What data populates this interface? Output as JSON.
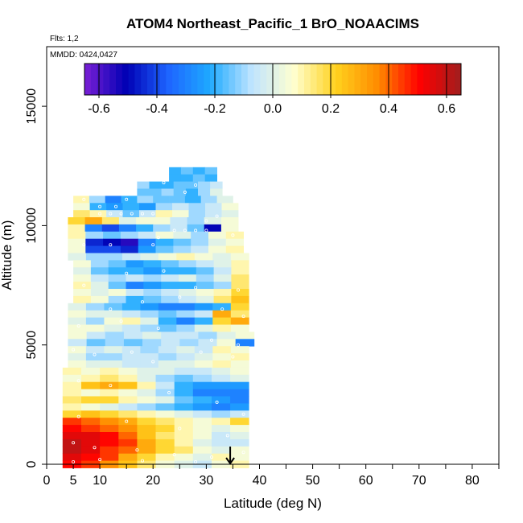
{
  "chart_data": {
    "type": "heatmap",
    "title": "ATOM4 Northeast_Pacific_1 BrO_NOAACIMS",
    "flights_label": "Flts: 1,2",
    "dates_label": "MMDD: 0424,0427",
    "xlabel": "Latitude (deg N)",
    "ylabel": "Altitude (m)",
    "xlim": [
      0,
      85
    ],
    "ylim": [
      0,
      17500
    ],
    "x_ticks": [
      0,
      5,
      10,
      20,
      30,
      40,
      50,
      60,
      70,
      80
    ],
    "y_ticks": [
      0,
      5000,
      10000,
      15000
    ],
    "colorbar": {
      "range": [
        -0.65,
        0.65
      ],
      "ticks": [
        -0.6,
        -0.4,
        -0.2,
        0.0,
        0.2,
        0.4,
        0.6
      ],
      "tick_labels": [
        "-0.6",
        "-0.4",
        "-0.2",
        "0.0",
        "0.2",
        "0.4",
        "0.6"
      ],
      "colors": [
        "#7a1fd6",
        "#0000b4",
        "#1e64ff",
        "#1eaaff",
        "#bfe4ff",
        "#ffffd0",
        "#ffd21e",
        "#ff8c00",
        "#ff0000",
        "#a01e1e"
      ]
    },
    "arrow_latitude": 34.5,
    "rows": [
      {
        "alt": 12300,
        "x0": 23,
        "x1": 32,
        "v": [
          -0.2,
          -0.15,
          -0.2,
          -0.15
        ]
      },
      {
        "alt": 12000,
        "x0": 23,
        "x1": 32,
        "v": [
          -0.2,
          -0.2,
          -0.15,
          -0.2
        ]
      },
      {
        "alt": 11700,
        "x0": 17,
        "x1": 33,
        "v": [
          -0.1,
          -0.2,
          -0.2,
          -0.15,
          -0.15,
          -0.1,
          -0.05
        ]
      },
      {
        "alt": 11400,
        "x0": 17,
        "x1": 33,
        "v": [
          -0.15,
          -0.15,
          -0.1,
          -0.15,
          -0.2,
          -0.1,
          0.0
        ]
      },
      {
        "alt": 11100,
        "x0": 5,
        "x1": 35,
        "v": [
          0.1,
          -0.1,
          -0.3,
          -0.2,
          -0.1,
          -0.15,
          -0.15,
          -0.2,
          -0.1,
          0.0
        ]
      },
      {
        "alt": 10800,
        "x0": 5,
        "x1": 36,
        "v": [
          0.05,
          -0.2,
          -0.25,
          -0.2,
          -0.25,
          -0.1,
          -0.05,
          -0.1,
          -0.05,
          0.05
        ]
      },
      {
        "alt": 10500,
        "x0": 5,
        "x1": 36,
        "v": [
          0.15,
          0.1,
          -0.05,
          -0.15,
          -0.05,
          0.1,
          0.05,
          -0.1,
          -0.05,
          0.0
        ]
      },
      {
        "alt": 10200,
        "x0": 4,
        "x1": 36,
        "v": [
          0.2,
          0.3,
          0.15,
          0.0,
          0.05,
          0.05,
          -0.05,
          -0.1,
          0.0,
          0.05
        ]
      },
      {
        "alt": 9900,
        "x0": 4,
        "x1": 36,
        "v": [
          0.1,
          -0.3,
          -0.4,
          -0.3,
          -0.2,
          -0.1,
          -0.05,
          -0.15,
          -0.5,
          0.05
        ]
      },
      {
        "alt": 9600,
        "x0": 4,
        "x1": 37,
        "v": [
          0.1,
          -0.1,
          -0.15,
          -0.1,
          -0.05,
          0.05,
          0.0,
          -0.1,
          0.05,
          0.1
        ]
      },
      {
        "alt": 9300,
        "x0": 4,
        "x1": 37,
        "v": [
          0.05,
          -0.45,
          -0.5,
          -0.55,
          -0.3,
          -0.2,
          -0.15,
          -0.1,
          0.0,
          0.05
        ]
      },
      {
        "alt": 9000,
        "x0": 4,
        "x1": 37,
        "v": [
          0.05,
          -0.4,
          -0.4,
          -0.45,
          -0.25,
          -0.15,
          -0.1,
          -0.05,
          0.05,
          0.1
        ]
      },
      {
        "alt": 8700,
        "x0": 4,
        "x1": 38,
        "v": [
          0.0,
          -0.1,
          -0.1,
          -0.05,
          0.0,
          0.05,
          0.1,
          0.05,
          0.0,
          0.05
        ]
      },
      {
        "alt": 8400,
        "x0": 5,
        "x1": 38,
        "v": [
          0.05,
          -0.1,
          -0.15,
          -0.25,
          -0.2,
          -0.15,
          -0.1,
          -0.05,
          0.0,
          0.1
        ]
      },
      {
        "alt": 8100,
        "x0": 5,
        "x1": 38,
        "v": [
          0.0,
          -0.15,
          -0.2,
          -0.2,
          -0.25,
          -0.2,
          -0.2,
          -0.15,
          -0.05,
          0.1
        ]
      },
      {
        "alt": 7800,
        "x0": 5,
        "x1": 38,
        "v": [
          0.05,
          -0.05,
          -0.1,
          -0.05,
          -0.1,
          -0.05,
          0.0,
          -0.1,
          0.0,
          0.15
        ]
      },
      {
        "alt": 7500,
        "x0": 5,
        "x1": 38,
        "v": [
          0.1,
          0.0,
          -0.15,
          -0.3,
          -0.25,
          -0.2,
          -0.2,
          -0.15,
          -0.1,
          0.15
        ]
      },
      {
        "alt": 7200,
        "x0": 5,
        "x1": 38,
        "v": [
          0.05,
          0.0,
          0.05,
          -0.05,
          -0.1,
          -0.05,
          0.0,
          0.05,
          0.1,
          0.2
        ]
      },
      {
        "alt": 6900,
        "x0": 5,
        "x1": 38,
        "v": [
          0.1,
          0.05,
          -0.1,
          -0.2,
          -0.15,
          -0.1,
          -0.05,
          0.0,
          0.15,
          0.25
        ]
      },
      {
        "alt": 6600,
        "x0": 4,
        "x1": 38,
        "v": [
          0.0,
          -0.1,
          -0.15,
          -0.2,
          -0.25,
          -0.3,
          -0.3,
          -0.25,
          -0.2,
          0.2
        ]
      },
      {
        "alt": 6300,
        "x0": 4,
        "x1": 38,
        "v": [
          0.05,
          0.0,
          0.0,
          -0.05,
          -0.1,
          -0.15,
          -0.1,
          -0.05,
          0.3,
          0.15
        ]
      },
      {
        "alt": 6000,
        "x0": 4,
        "x1": 38,
        "v": [
          0.0,
          -0.1,
          0.05,
          0.1,
          0.0,
          -0.2,
          -0.3,
          -0.2,
          0.2,
          0.3
        ]
      },
      {
        "alt": 5700,
        "x0": 4,
        "x1": 38,
        "v": [
          0.05,
          0.05,
          0.0,
          -0.05,
          -0.1,
          -0.15,
          -0.1,
          0.0,
          0.1,
          0.05
        ]
      },
      {
        "alt": 5400,
        "x0": 4,
        "x1": 39,
        "v": [
          0.05,
          -0.05,
          -0.1,
          -0.05,
          0.0,
          -0.05,
          -0.05,
          -0.1,
          0.0,
          0.05
        ]
      },
      {
        "alt": 5100,
        "x0": 4,
        "x1": 39,
        "v": [
          -0.05,
          -0.15,
          -0.1,
          -0.15,
          -0.1,
          -0.05,
          -0.1,
          -0.05,
          0.05,
          -0.3
        ]
      },
      {
        "alt": 4800,
        "x0": 4,
        "x1": 38,
        "v": [
          0.05,
          -0.05,
          0.0,
          -0.05,
          -0.1,
          -0.05,
          0.0,
          -0.05,
          0.1,
          0.05
        ]
      },
      {
        "alt": 4500,
        "x0": 4,
        "x1": 38,
        "v": [
          0.0,
          -0.1,
          -0.1,
          -0.05,
          -0.05,
          -0.1,
          -0.05,
          0.0,
          0.05,
          0.1
        ]
      },
      {
        "alt": 4200,
        "x0": 4,
        "x1": 38,
        "v": [
          0.05,
          0.0,
          0.0,
          -0.05,
          -0.05,
          0.0,
          0.0,
          0.05,
          0.1,
          0.05
        ]
      },
      {
        "alt": 3900,
        "x0": 3,
        "x1": 38,
        "v": [
          0.1,
          0.05,
          0.1,
          0.05,
          0.0,
          0.0,
          -0.05,
          -0.05,
          0.0,
          0.05
        ]
      },
      {
        "alt": 3600,
        "x0": 3,
        "x1": 38,
        "v": [
          0.05,
          0.1,
          0.15,
          0.1,
          0.0,
          -0.1,
          -0.15,
          -0.1,
          -0.05,
          0.0
        ]
      },
      {
        "alt": 3300,
        "x0": 3,
        "x1": 38,
        "v": [
          0.1,
          0.25,
          0.3,
          0.25,
          0.1,
          -0.05,
          -0.2,
          -0.25,
          -0.25,
          -0.25
        ]
      },
      {
        "alt": 3000,
        "x0": 3,
        "x1": 38,
        "v": [
          0.1,
          0.05,
          0.1,
          0.05,
          0.0,
          -0.1,
          -0.2,
          -0.3,
          -0.3,
          -0.3
        ]
      },
      {
        "alt": 2700,
        "x0": 3,
        "x1": 38,
        "v": [
          0.15,
          0.2,
          0.2,
          0.1,
          0.05,
          0.0,
          -0.15,
          -0.2,
          -0.25,
          -0.3
        ]
      },
      {
        "alt": 2400,
        "x0": 3,
        "x1": 38,
        "v": [
          0.1,
          0.05,
          0.0,
          -0.05,
          -0.1,
          -0.15,
          -0.2,
          -0.25,
          -0.3,
          -0.25
        ]
      },
      {
        "alt": 2100,
        "x0": 3,
        "x1": 38,
        "v": [
          0.2,
          0.25,
          0.2,
          0.15,
          0.1,
          0.05,
          0.0,
          -0.05,
          -0.1,
          -0.05
        ]
      },
      {
        "alt": 1800,
        "x0": 3,
        "x1": 38,
        "v": [
          0.45,
          0.4,
          0.35,
          0.3,
          0.2,
          0.15,
          0.1,
          0.05,
          0.1,
          0.2
        ]
      },
      {
        "alt": 1500,
        "x0": 3,
        "x1": 38,
        "v": [
          0.5,
          0.45,
          0.4,
          0.35,
          0.25,
          0.2,
          0.1,
          0.05,
          0.0,
          0.05
        ]
      },
      {
        "alt": 1200,
        "x0": 3,
        "x1": 38,
        "v": [
          0.55,
          0.55,
          0.5,
          0.4,
          0.25,
          0.15,
          0.1,
          0.05,
          -0.05,
          0.0
        ]
      },
      {
        "alt": 900,
        "x0": 3,
        "x1": 38,
        "v": [
          0.6,
          0.55,
          0.5,
          0.45,
          0.3,
          0.2,
          0.1,
          0.0,
          -0.05,
          -0.05
        ]
      },
      {
        "alt": 600,
        "x0": 3,
        "x1": 38,
        "v": [
          0.6,
          0.55,
          0.45,
          0.4,
          0.3,
          0.2,
          0.15,
          0.05,
          0.0,
          0.05
        ]
      },
      {
        "alt": 300,
        "x0": 3,
        "x1": 38,
        "v": [
          0.55,
          0.5,
          0.45,
          0.3,
          0.2,
          0.1,
          0.05,
          0.0,
          0.1,
          0.05
        ]
      },
      {
        "alt": 0,
        "x0": 3,
        "x1": 38,
        "v": [
          0.5,
          0.45,
          0.35,
          0.25,
          0.15,
          0.05,
          0.0,
          -0.05,
          0.05,
          0.1
        ]
      }
    ],
    "points": [
      [
        10,
        10500
      ],
      [
        12,
        10500
      ],
      [
        14,
        10500
      ],
      [
        16,
        10500
      ],
      [
        18,
        10500
      ],
      [
        20,
        10500
      ],
      [
        7,
        11100
      ],
      [
        10,
        10800
      ],
      [
        13,
        10800
      ],
      [
        15,
        11100
      ],
      [
        26,
        11400
      ],
      [
        28,
        11700
      ],
      [
        22,
        11800
      ],
      [
        30,
        10200
      ],
      [
        32,
        10400
      ],
      [
        20,
        9200
      ],
      [
        21,
        9500
      ],
      [
        24,
        9800
      ],
      [
        26,
        9800
      ],
      [
        28,
        9800
      ],
      [
        30,
        9800
      ],
      [
        7,
        9200
      ],
      [
        12,
        9200
      ],
      [
        35,
        9600
      ],
      [
        15,
        8000
      ],
      [
        22,
        8100
      ],
      [
        28,
        7400
      ],
      [
        36,
        7300
      ],
      [
        7,
        7500
      ],
      [
        12,
        6500
      ],
      [
        18,
        6800
      ],
      [
        25,
        7000
      ],
      [
        33,
        6500
      ],
      [
        37,
        6200
      ],
      [
        6,
        5800
      ],
      [
        14,
        6000
      ],
      [
        21,
        5700
      ],
      [
        31,
        5200
      ],
      [
        36,
        5000
      ],
      [
        5,
        4800
      ],
      [
        9,
        4600
      ],
      [
        16,
        4700
      ],
      [
        20,
        4300
      ],
      [
        29,
        4700
      ],
      [
        35,
        4500
      ],
      [
        6,
        3500
      ],
      [
        12,
        3300
      ],
      [
        23,
        3000
      ],
      [
        32,
        2600
      ],
      [
        37,
        2100
      ],
      [
        6,
        2000
      ],
      [
        15,
        1800
      ],
      [
        25,
        1500
      ],
      [
        34,
        1200
      ],
      [
        5,
        900
      ],
      [
        9,
        700
      ],
      [
        17,
        600
      ],
      [
        24,
        400
      ],
      [
        31,
        300
      ],
      [
        37,
        500
      ],
      [
        5,
        100
      ],
      [
        10,
        200
      ],
      [
        18,
        150
      ],
      [
        28,
        100
      ]
    ]
  }
}
